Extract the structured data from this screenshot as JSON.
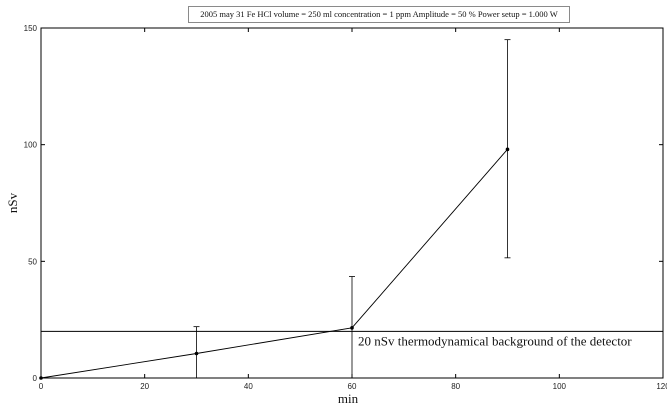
{
  "chart_data": {
    "type": "line",
    "title": "2005 may 31  Fe HCl volume = 250 ml concentration = 1 ppm  Amplitude = 50 %  Power setup = 1.000 W",
    "xlabel": "min",
    "ylabel": "nSv",
    "xlim": [
      0,
      120
    ],
    "ylim": [
      0,
      150
    ],
    "x_ticks": [
      "0",
      "20",
      "40",
      "60",
      "80",
      "100",
      "120"
    ],
    "y_ticks": [
      "0",
      "50",
      "100",
      "150"
    ],
    "grid": false,
    "legend": "none",
    "series": [
      {
        "x": [
          0,
          30,
          60,
          90
        ],
        "y": [
          0,
          10.5,
          21.5,
          98
        ],
        "error_low": [
          0,
          0,
          0,
          51.5
        ],
        "error_high": [
          0,
          22,
          43.5,
          145
        ],
        "color": "#000000"
      }
    ],
    "reference_line": {
      "y": 20,
      "label": "20 nSv thermodynamical background of the detector"
    }
  }
}
